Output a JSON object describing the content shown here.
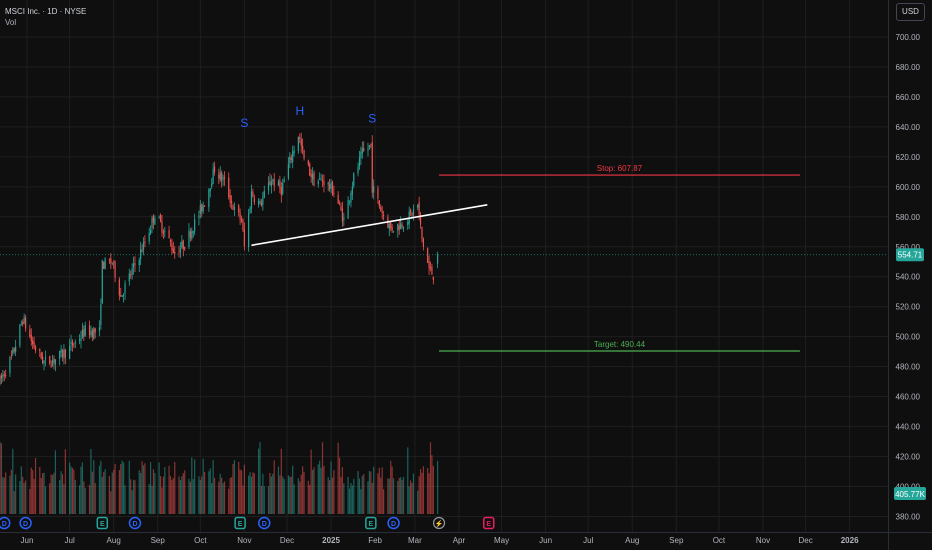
{
  "header": {
    "title": "MSCI Inc. · 1D · NYSE",
    "volume_label": "Vol",
    "currency": "USD"
  },
  "colors": {
    "background": "#0f0f0f",
    "up": "#26a69a",
    "down": "#ef5350",
    "stop": "#f23645",
    "target": "#4caf50",
    "neckline": "#ffffff",
    "pattern_label": "#2962ff"
  },
  "chart_data": {
    "type": "candlestick",
    "symbol": "MSCI",
    "interval": "1D",
    "exchange": "NYSE",
    "y_axis": {
      "range": [
        375,
        712
      ],
      "ticks": [
        380,
        400,
        420,
        440,
        460,
        480,
        500,
        520,
        540,
        560,
        580,
        600,
        620,
        640,
        660,
        680,
        700
      ],
      "tick_labels": [
        "380.00",
        "400.00",
        "420.00",
        "440.00",
        "460.00",
        "480.00",
        "500.00",
        "520.00",
        "540.00",
        "560.00",
        "580.00",
        "600.00",
        "620.00",
        "640.00",
        "660.00",
        "680.00",
        "700.00"
      ]
    },
    "x_axis": {
      "labels": [
        "Jun",
        "Jul",
        "Aug",
        "Sep",
        "Oct",
        "Nov",
        "Dec",
        "2025",
        "Feb",
        "Mar",
        "Apr",
        "May",
        "Jun",
        "Jul",
        "Aug",
        "Sep",
        "Oct",
        "Nov",
        "Dec",
        "2026"
      ],
      "label_dates": [
        "2024-06-01",
        "2024-07-01",
        "2024-08-01",
        "2024-09-01",
        "2024-10-01",
        "2024-11-01",
        "2024-12-01",
        "2025-01-01",
        "2025-02-01",
        "2025-03-01",
        "2025-04-01",
        "2025-05-01",
        "2025-06-01",
        "2025-07-01",
        "2025-08-01",
        "2025-09-01",
        "2025-10-01",
        "2025-11-01",
        "2025-12-01",
        "2026-01-01"
      ],
      "range": [
        "2024-05-13",
        "2026-01-28"
      ]
    },
    "price_path": [
      [
        "2024-05-13",
        470
      ],
      [
        "2024-05-22",
        488
      ],
      [
        "2024-05-29",
        512
      ],
      [
        "2024-06-05",
        495
      ],
      [
        "2024-06-13",
        483
      ],
      [
        "2024-06-21",
        485
      ],
      [
        "2024-06-28",
        490
      ],
      [
        "2024-07-05",
        496
      ],
      [
        "2024-07-12",
        504
      ],
      [
        "2024-07-22",
        503
      ],
      [
        "2024-07-24",
        548
      ],
      [
        "2024-07-31",
        550
      ],
      [
        "2024-08-06",
        527
      ],
      [
        "2024-08-15",
        546
      ],
      [
        "2024-08-23",
        563
      ],
      [
        "2024-08-30",
        582
      ],
      [
        "2024-09-06",
        570
      ],
      [
        "2024-09-13",
        556
      ],
      [
        "2024-09-20",
        562
      ],
      [
        "2024-09-27",
        576
      ],
      [
        "2024-10-04",
        590
      ],
      [
        "2024-10-11",
        612
      ],
      [
        "2024-10-18",
        603
      ],
      [
        "2024-10-25",
        584
      ],
      [
        "2024-10-30",
        578
      ],
      [
        "2024-11-01",
        560
      ],
      [
        "2024-11-06",
        596
      ],
      [
        "2024-11-12",
        588
      ],
      [
        "2024-11-20",
        605
      ],
      [
        "2024-11-27",
        598
      ],
      [
        "2024-12-04",
        620
      ],
      [
        "2024-12-09",
        635
      ],
      [
        "2024-12-13",
        618
      ],
      [
        "2024-12-20",
        604
      ],
      [
        "2024-12-27",
        604
      ],
      [
        "2025-01-03",
        597
      ],
      [
        "2025-01-10",
        578
      ],
      [
        "2025-01-17",
        606
      ],
      [
        "2025-01-23",
        622
      ],
      [
        "2025-01-29",
        628
      ],
      [
        "2025-01-30",
        600
      ],
      [
        "2025-02-05",
        585
      ],
      [
        "2025-02-12",
        572
      ],
      [
        "2025-02-19",
        575
      ],
      [
        "2025-02-26",
        581
      ],
      [
        "2025-03-03",
        588
      ],
      [
        "2025-03-06",
        565
      ],
      [
        "2025-03-11",
        545
      ],
      [
        "2025-03-14",
        541
      ],
      [
        "2025-03-17",
        555
      ]
    ],
    "last_price": 554.71,
    "last_price_label": "554.71",
    "volume_label": "405.77K",
    "pattern": {
      "name": "head and shoulders",
      "labels": [
        {
          "text": "S",
          "date": "2024-11-01",
          "price": 640
        },
        {
          "text": "H",
          "date": "2024-12-10",
          "price": 648
        },
        {
          "text": "S",
          "date": "2025-01-30",
          "price": 643
        }
      ],
      "neckline": {
        "start": [
          "2024-11-06",
          561
        ],
        "end": [
          "2025-04-21",
          588
        ]
      }
    },
    "levels": [
      {
        "name": "Stop",
        "value": 607.87,
        "label": "Stop: 607.87",
        "start": "2025-03-18",
        "end": "2025-11-27"
      },
      {
        "name": "Target",
        "value": 490.44,
        "label": "Target: 490.44",
        "start": "2025-03-18",
        "end": "2025-11-27"
      }
    ],
    "event_markers": [
      {
        "label": "D",
        "date": "2024-05-16",
        "kind": "dividend"
      },
      {
        "label": "D",
        "date": "2024-05-31",
        "kind": "dividend"
      },
      {
        "label": "E",
        "date": "2024-07-24",
        "kind": "earnings"
      },
      {
        "label": "D",
        "date": "2024-08-16",
        "kind": "dividend"
      },
      {
        "label": "E",
        "date": "2024-10-29",
        "kind": "earnings"
      },
      {
        "label": "D",
        "date": "2024-11-15",
        "kind": "dividend"
      },
      {
        "label": "E",
        "date": "2025-01-29",
        "kind": "earnings"
      },
      {
        "label": "D",
        "date": "2025-02-14",
        "kind": "dividend"
      },
      {
        "label": "⚡",
        "date": "2025-03-18",
        "kind": "news"
      },
      {
        "label": "E",
        "date": "2025-04-22",
        "kind": "upcoming-earnings"
      }
    ],
    "grid": true
  }
}
